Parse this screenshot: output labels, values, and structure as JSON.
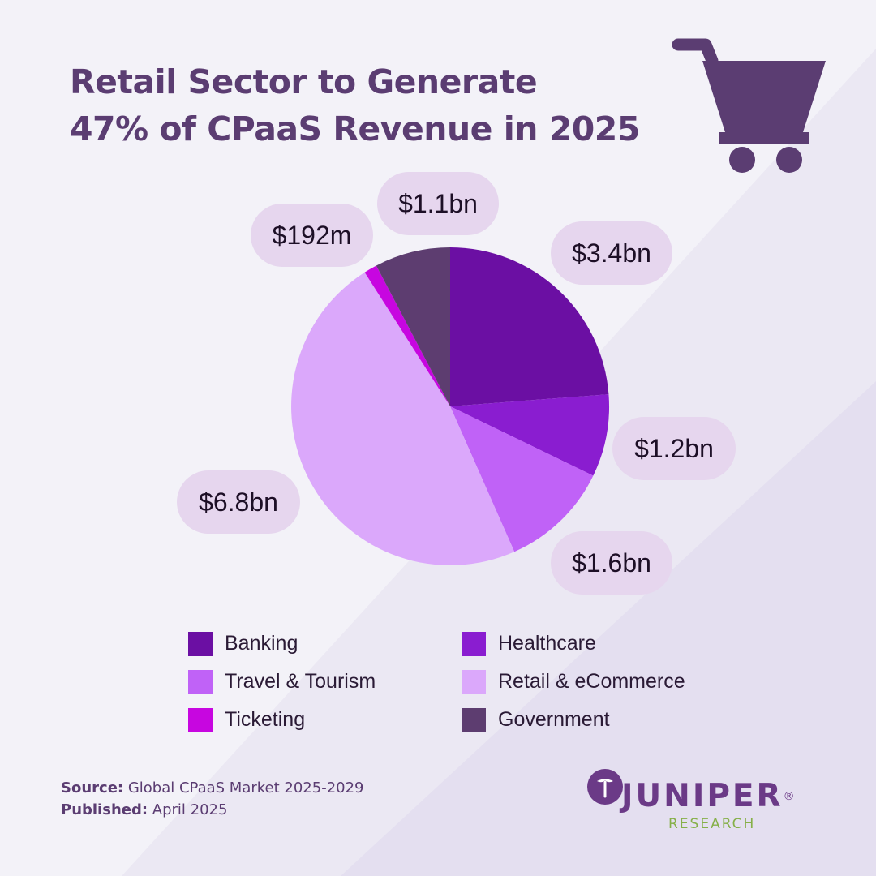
{
  "title": {
    "line1": "Retail Sector to Generate",
    "line2": "47% of CPaaS Revenue in 2025"
  },
  "colors": {
    "accent": "#5b3d72",
    "label_bg": "#e6d6ee"
  },
  "chart_data": {
    "type": "pie",
    "title": "Retail Sector to Generate 47% of CPaaS Revenue in 2025",
    "slices": [
      {
        "name": "Banking",
        "value": 3.4,
        "label": "$3.4bn",
        "color": "#6b0fa3"
      },
      {
        "name": "Healthcare",
        "value": 1.2,
        "label": "$1.2bn",
        "color": "#8a1dd0"
      },
      {
        "name": "Travel & Tourism",
        "value": 1.6,
        "label": "$1.6bn",
        "color": "#c062f7"
      },
      {
        "name": "Retail & eCommerce",
        "value": 6.8,
        "label": "$6.8bn",
        "color": "#dba8fb"
      },
      {
        "name": "Ticketing",
        "value": 0.192,
        "label": "$192m",
        "color": "#c706e0"
      },
      {
        "name": "Government",
        "value": 1.1,
        "label": "$1.1bn",
        "color": "#5d3d70"
      }
    ],
    "legend": [
      {
        "label": "Banking",
        "color": "#6b0fa3"
      },
      {
        "label": "Healthcare",
        "color": "#8a1dd0"
      },
      {
        "label": "Travel & Tourism",
        "color": "#c062f7"
      },
      {
        "label": "Retail & eCommerce",
        "color": "#dba8fb"
      },
      {
        "label": "Ticketing",
        "color": "#c706e0"
      },
      {
        "label": "Government",
        "color": "#5d3d70"
      }
    ],
    "legend_placement": "bottom"
  },
  "source": {
    "source_label": "Source:",
    "source_value": " Global CPaaS Market 2025-2029",
    "published_label": "Published:",
    "published_value": " April 2025"
  },
  "logo": {
    "word": "JUNIPER",
    "reg": "®",
    "sub": "RESEARCH"
  },
  "icons": {
    "cart": "shopping-cart-icon"
  }
}
